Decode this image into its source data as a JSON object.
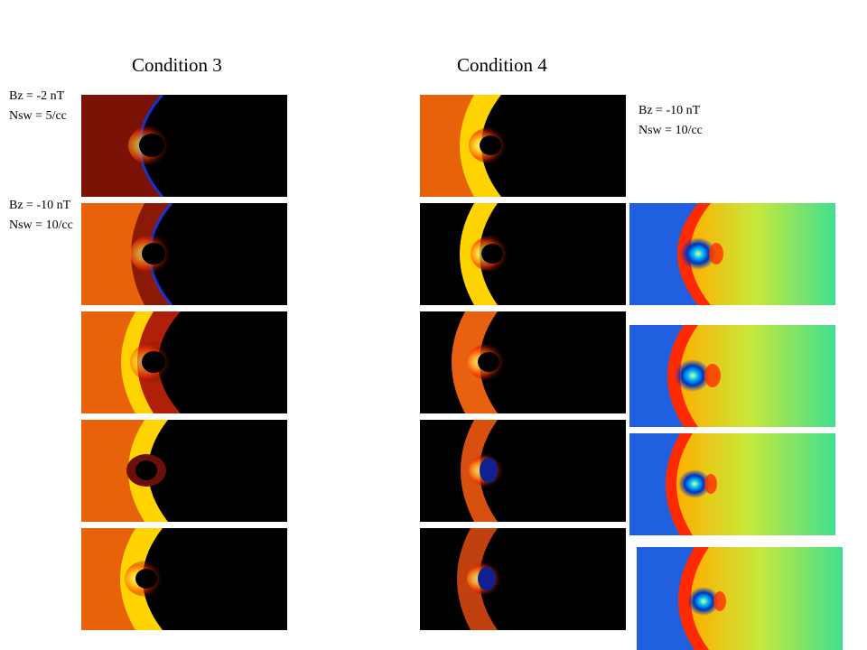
{
  "headings": {
    "left": "Condition 3",
    "right": "Condition 4"
  },
  "labels": {
    "c3_top_bz": "Bz = -2 nT",
    "c3_top_nsw": "Nsw = 5/cc",
    "c3_mid_bz": "Bz = -10 nT",
    "c3_mid_nsw": "Nsw = 10/cc",
    "c4_bz": "Bz = -10 nT",
    "c4_nsw": "Nsw = 10/cc"
  },
  "colors": {
    "hot_background": "#e8620a",
    "hot_shock": "#ffd400",
    "hot_magnetosphere": "#000000",
    "jet_background": "#1f5fe0",
    "jet_sheath": "#ff2a00",
    "jet_tail": "#9be82a"
  }
}
